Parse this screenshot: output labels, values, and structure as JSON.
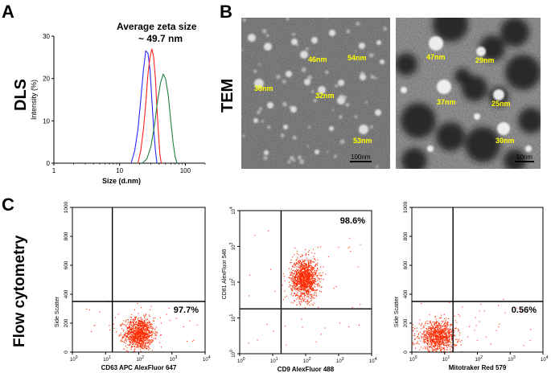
{
  "panels": {
    "A": {
      "letter": "A",
      "row_label": "DLS",
      "title": "Average zeta size",
      "subtitle": "~ 49.7 nm"
    },
    "B": {
      "letter": "B",
      "row_label": "TEM",
      "left_image": {
        "sizes": [
          "46nm",
          "54nm",
          "38nm",
          "32nm",
          "53nm"
        ],
        "scale_bar": "100nm"
      },
      "right_image": {
        "sizes": [
          "47nm",
          "29nm",
          "37nm",
          "25nm",
          "30nm"
        ],
        "scale_bar": "50nm"
      }
    },
    "C": {
      "letter": "C",
      "row_label": "Flow cytometry"
    }
  },
  "chart_data": [
    {
      "type": "line",
      "title": "Average zeta size ~ 49.7 nm",
      "xlabel": "Size (d.nm)",
      "ylabel": "Intensity (%)",
      "xscale": "log",
      "xlim": [
        1,
        200
      ],
      "ylim": [
        0,
        30
      ],
      "xticks": [
        "1",
        "10",
        "100"
      ],
      "yticks": [
        "0",
        "10",
        "20",
        "30"
      ],
      "series": [
        {
          "name": "blue",
          "color": "#2a2aff",
          "x": [
            15,
            17,
            19,
            21,
            23,
            25,
            27,
            29,
            31,
            33,
            35,
            37
          ],
          "y": [
            0,
            3,
            8,
            15,
            22,
            26.5,
            26,
            22,
            15,
            8,
            3,
            0
          ]
        },
        {
          "name": "red",
          "color": "#ff2020",
          "x": [
            19,
            21,
            23,
            25,
            27,
            29,
            31,
            33,
            35,
            37,
            39,
            41,
            43
          ],
          "y": [
            0,
            3,
            8,
            14,
            21,
            25,
            27,
            25,
            20,
            13,
            7,
            2,
            0
          ]
        },
        {
          "name": "green",
          "color": "#208040",
          "x": [
            22,
            26,
            30,
            34,
            38,
            42,
            46,
            50,
            55,
            60,
            65,
            70,
            75
          ],
          "y": [
            0,
            1,
            4,
            9,
            15,
            19,
            21,
            20,
            16,
            10,
            5,
            1.5,
            0
          ]
        }
      ]
    },
    {
      "type": "scatter",
      "xlabel": "CD63 APC  AlexFluor 647",
      "ylabel": "Side Scatter",
      "xscale": "log",
      "xlim": [
        1,
        10000
      ],
      "ylim": [
        0,
        1000
      ],
      "xticks": [
        "10^0",
        "10^1",
        "10^2",
        "10^3",
        "10^4"
      ],
      "yticks": [
        "0",
        "200",
        "400",
        "600",
        "800",
        "1000"
      ],
      "gate": {
        "x": 16,
        "y": 350
      },
      "quadrant_label": "97.7%",
      "cluster": {
        "x_center": 100,
        "y_center": 130,
        "x_spread_log": 0.22,
        "y_spread": 55,
        "count": 1100,
        "color": "#ff2a00"
      }
    },
    {
      "type": "scatter",
      "xlabel": "CD9 AlexFluor 488",
      "ylabel": "CD81 AlexFluor 546",
      "xscale": "log",
      "yscale": "log",
      "xlim": [
        1,
        10000
      ],
      "ylim": [
        1,
        10000
      ],
      "xticks": [
        "10^0",
        "10^1",
        "10^2",
        "10^3",
        "10^4"
      ],
      "yticks": [
        "10^0",
        "10^1",
        "10^2",
        "10^3",
        "10^4"
      ],
      "gate": {
        "x": 18,
        "y": 18
      },
      "quadrant_label": "98.6%",
      "cluster": {
        "x_center": 90,
        "y_center": 130,
        "x_spread_log": 0.2,
        "y_spread_log": 0.28,
        "count": 1300,
        "color": "#ff2a00"
      }
    },
    {
      "type": "scatter",
      "xlabel": "Mitotraker Red 579",
      "ylabel": "Side Scatter",
      "xscale": "log",
      "xlim": [
        1,
        10000
      ],
      "ylim": [
        0,
        1000
      ],
      "xticks": [
        "10^0",
        "10^1",
        "10^2",
        "10^3",
        "10^4"
      ],
      "yticks": [
        "0",
        "200",
        "400",
        "600",
        "800",
        "1000"
      ],
      "gate": {
        "x": 18,
        "y": 350
      },
      "quadrant_label": "0.56%",
      "cluster": {
        "x_center": 6,
        "y_center": 110,
        "x_spread_log": 0.28,
        "y_spread": 50,
        "count": 1000,
        "color": "#ff2a00"
      }
    }
  ]
}
